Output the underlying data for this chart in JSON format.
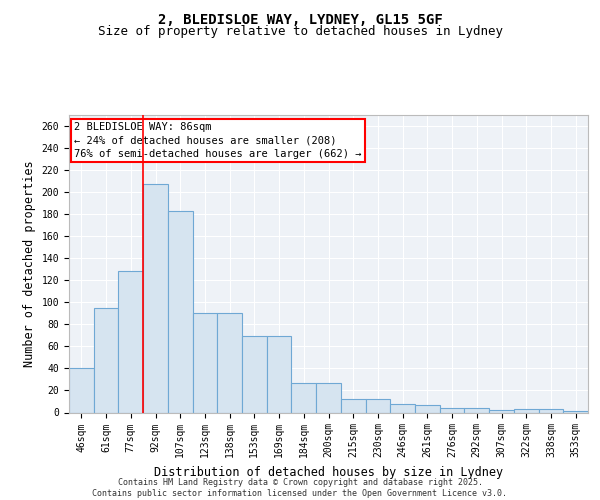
{
  "title1": "2, BLEDISLOE WAY, LYDNEY, GL15 5GF",
  "title2": "Size of property relative to detached houses in Lydney",
  "xlabel": "Distribution of detached houses by size in Lydney",
  "ylabel": "Number of detached properties",
  "categories": [
    "46sqm",
    "61sqm",
    "77sqm",
    "92sqm",
    "107sqm",
    "123sqm",
    "138sqm",
    "153sqm",
    "169sqm",
    "184sqm",
    "200sqm",
    "215sqm",
    "230sqm",
    "246sqm",
    "261sqm",
    "276sqm",
    "292sqm",
    "307sqm",
    "322sqm",
    "338sqm",
    "353sqm"
  ],
  "values": [
    40,
    95,
    128,
    207,
    183,
    90,
    90,
    69,
    69,
    27,
    27,
    12,
    12,
    8,
    7,
    4,
    4,
    2,
    3,
    3,
    1
  ],
  "bar_color": "#d6e4f0",
  "bar_edge_color": "#6fa8d4",
  "red_line_x": 2.5,
  "annotation_line1": "2 BLEDISLOE WAY: 86sqm",
  "annotation_line2": "← 24% of detached houses are smaller (208)",
  "annotation_line3": "76% of semi-detached houses are larger (662) →",
  "footer_text": "Contains HM Land Registry data © Crown copyright and database right 2025.\nContains public sector information licensed under the Open Government Licence v3.0.",
  "ylim": [
    0,
    270
  ],
  "yticks": [
    0,
    20,
    40,
    60,
    80,
    100,
    120,
    140,
    160,
    180,
    200,
    220,
    240,
    260
  ],
  "bg_color": "#eef2f7",
  "grid_color": "#ffffff",
  "title_fontsize": 10,
  "subtitle_fontsize": 9,
  "tick_fontsize": 7,
  "label_fontsize": 8.5,
  "footer_fontsize": 6,
  "annotation_fontsize": 7.5
}
